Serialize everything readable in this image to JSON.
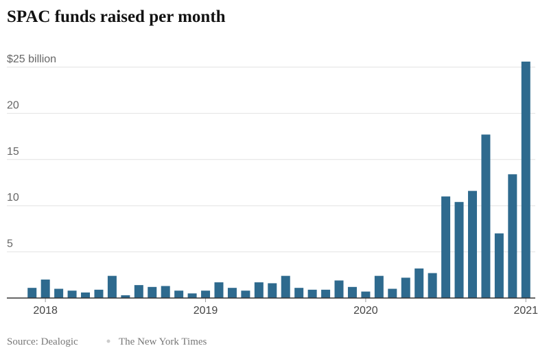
{
  "chart_data": {
    "type": "bar",
    "title": "SPAC funds raised per month",
    "source": "Source: Dealogic",
    "credit": "The New York Times",
    "categories": [
      null,
      "2018",
      null,
      null,
      null,
      null,
      null,
      null,
      null,
      null,
      null,
      null,
      null,
      "2019",
      null,
      null,
      null,
      null,
      null,
      null,
      null,
      null,
      null,
      null,
      null,
      "2020",
      null,
      null,
      null,
      null,
      null,
      null,
      null,
      null,
      null,
      null,
      null,
      "2021"
    ],
    "values": [
      1.1,
      2.0,
      1.0,
      0.8,
      0.6,
      0.9,
      2.4,
      0.3,
      1.4,
      1.2,
      1.3,
      0.8,
      0.5,
      0.8,
      1.7,
      1.1,
      0.8,
      1.7,
      1.6,
      2.4,
      1.1,
      0.9,
      0.9,
      1.9,
      1.2,
      0.7,
      2.4,
      1.0,
      2.2,
      3.2,
      2.7,
      11.0,
      10.4,
      11.6,
      17.7,
      7.0,
      13.4,
      25.6
    ],
    "color": "#2e6a8e",
    "ylim": [
      0,
      26
    ],
    "yticks": [
      5,
      10,
      15,
      20,
      {
        "value": 25,
        "label": "$25 billion"
      }
    ],
    "grid": true
  }
}
